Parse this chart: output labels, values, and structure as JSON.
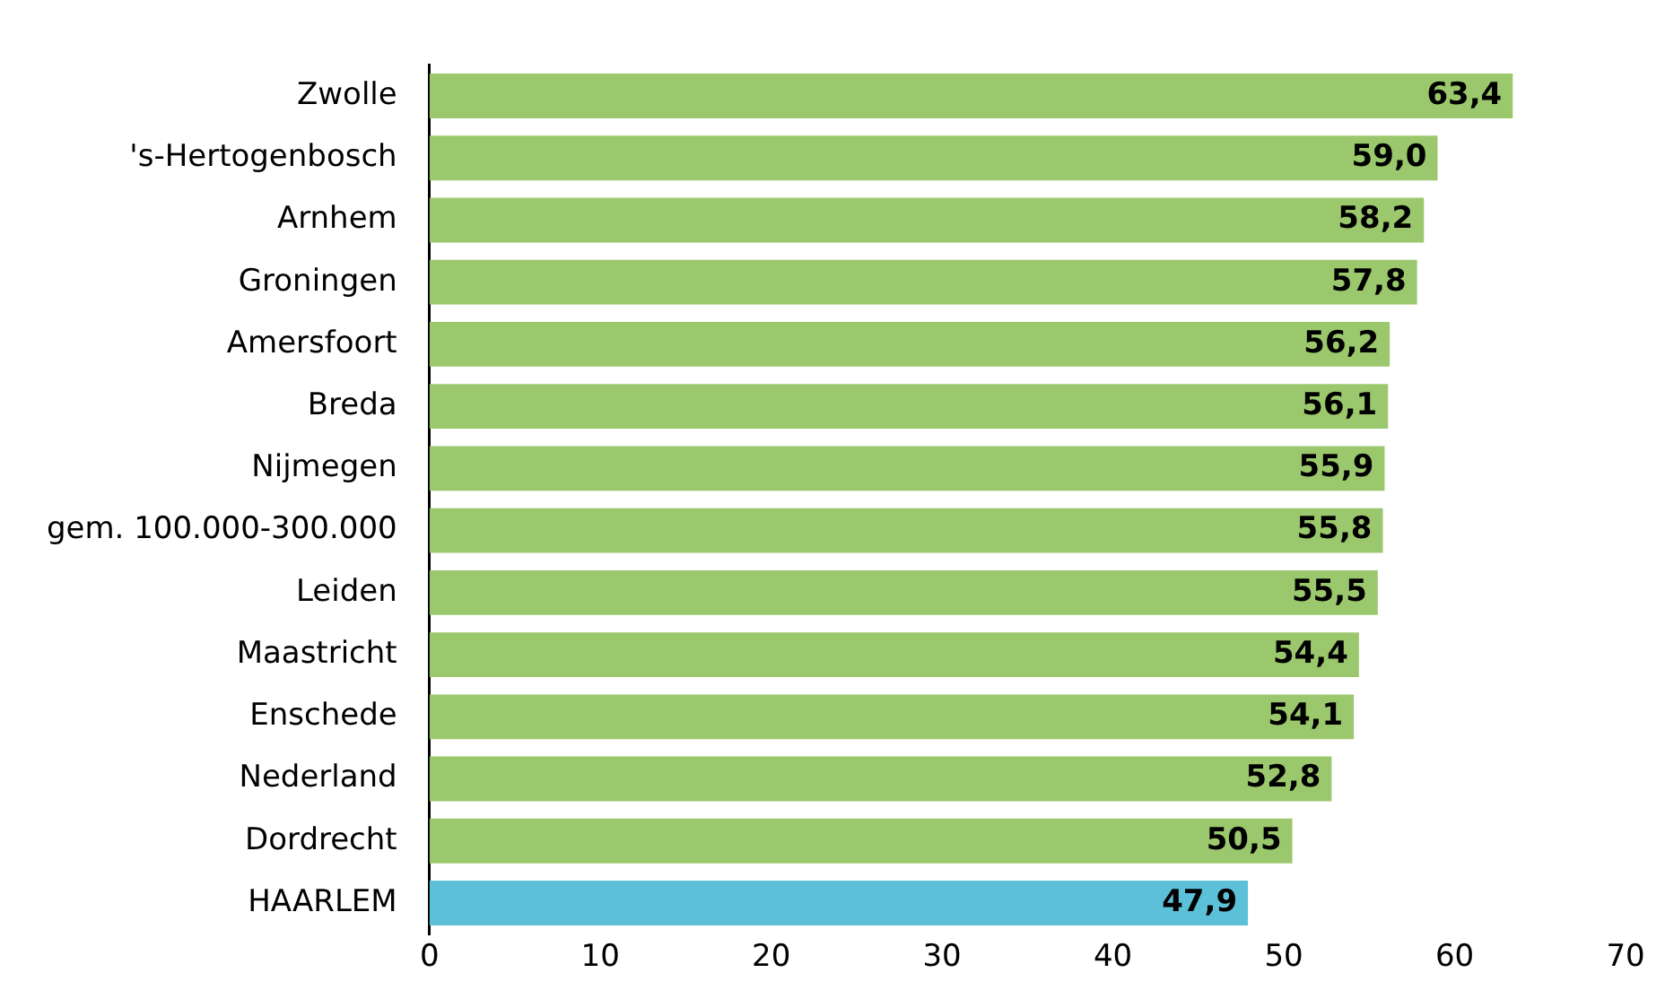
{
  "chart_data": {
    "type": "bar",
    "orientation": "horizontal",
    "categories": [
      "Zwolle",
      "'s-Hertogenbosch",
      "Arnhem",
      "Groningen",
      "Amersfoort",
      "Breda",
      "Nijmegen",
      "gem. 100.000-300.000",
      "Leiden",
      "Maastricht",
      "Enschede",
      "Nederland",
      "Dordrecht",
      "HAARLEM"
    ],
    "values": [
      63.4,
      59.0,
      58.2,
      57.8,
      56.2,
      56.1,
      55.9,
      55.8,
      55.5,
      54.4,
      54.1,
      52.8,
      50.5,
      47.9
    ],
    "value_labels": [
      "63,4",
      "59,0",
      "58,2",
      "57,8",
      "56,2",
      "56,1",
      "55,9",
      "55,8",
      "55,5",
      "54,4",
      "54,1",
      "52,8",
      "50,5",
      "47,9"
    ],
    "colors": [
      "#9bc86c",
      "#9bc86c",
      "#9bc86c",
      "#9bc86c",
      "#9bc86c",
      "#9bc86c",
      "#9bc86c",
      "#9bc86c",
      "#9bc86c",
      "#9bc86c",
      "#9bc86c",
      "#9bc86c",
      "#9bc86c",
      "#5bc0d8"
    ],
    "xlim": [
      0,
      70
    ],
    "xticks": [
      0,
      10,
      20,
      30,
      40,
      50,
      60,
      70
    ],
    "grid": false,
    "legend": false
  }
}
